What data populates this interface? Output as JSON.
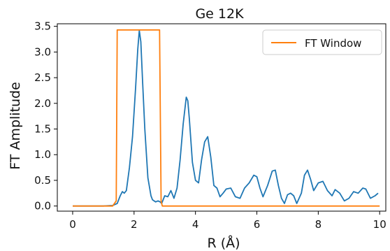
{
  "chart_data": {
    "type": "line",
    "title": "Ge 12K",
    "xlabel": "R (Å)",
    "ylabel": "FT Amplitude",
    "xlim": [
      -0.5,
      10.2
    ],
    "ylim": [
      -0.1,
      3.55
    ],
    "xticks": [
      0,
      2,
      4,
      6,
      8,
      10
    ],
    "yticks": [
      0.0,
      0.5,
      1.0,
      1.5,
      2.0,
      2.5,
      3.0,
      3.5
    ],
    "grid": false,
    "legend_position": "top-right",
    "colors": {
      "amplitude": "#1f77b4",
      "window": "#ff7f0e"
    },
    "series": [
      {
        "legend": false,
        "color": "#1f77b4",
        "x": [
          0.0,
          0.5,
          1.0,
          1.3,
          1.45,
          1.55,
          1.62,
          1.68,
          1.75,
          1.85,
          1.95,
          2.05,
          2.12,
          2.17,
          2.22,
          2.28,
          2.35,
          2.45,
          2.55,
          2.6,
          2.65,
          2.7,
          2.78,
          2.85,
          2.9,
          3.0,
          3.1,
          3.2,
          3.3,
          3.4,
          3.5,
          3.6,
          3.7,
          3.75,
          3.8,
          3.9,
          4.0,
          4.1,
          4.2,
          4.3,
          4.4,
          4.5,
          4.6,
          4.7,
          4.8,
          4.9,
          5.0,
          5.15,
          5.3,
          5.45,
          5.6,
          5.75,
          5.9,
          6.0,
          6.1,
          6.2,
          6.35,
          6.5,
          6.6,
          6.7,
          6.8,
          6.9,
          7.0,
          7.1,
          7.2,
          7.3,
          7.45,
          7.55,
          7.65,
          7.75,
          7.85,
          8.0,
          8.15,
          8.3,
          8.45,
          8.55,
          8.7,
          8.85,
          9.0,
          9.15,
          9.3,
          9.45,
          9.55,
          9.7,
          9.85,
          9.95
        ],
        "y": [
          0.0,
          0.0,
          0.0,
          0.01,
          0.05,
          0.2,
          0.28,
          0.25,
          0.3,
          0.75,
          1.35,
          2.3,
          3.05,
          3.42,
          3.2,
          2.4,
          1.5,
          0.55,
          0.2,
          0.12,
          0.1,
          0.08,
          0.1,
          0.08,
          0.05,
          0.2,
          0.18,
          0.3,
          0.15,
          0.35,
          0.9,
          1.6,
          2.12,
          2.05,
          1.7,
          0.85,
          0.5,
          0.45,
          0.9,
          1.25,
          1.35,
          0.95,
          0.4,
          0.35,
          0.18,
          0.25,
          0.33,
          0.35,
          0.18,
          0.15,
          0.35,
          0.45,
          0.6,
          0.57,
          0.35,
          0.18,
          0.4,
          0.68,
          0.7,
          0.4,
          0.15,
          0.05,
          0.22,
          0.25,
          0.2,
          0.05,
          0.25,
          0.6,
          0.7,
          0.52,
          0.3,
          0.45,
          0.48,
          0.3,
          0.2,
          0.32,
          0.25,
          0.1,
          0.15,
          0.28,
          0.25,
          0.35,
          0.33,
          0.15,
          0.2,
          0.25
        ]
      },
      {
        "name": "FT Window",
        "legend": true,
        "color": "#ff7f0e",
        "x": [
          0.0,
          1.3,
          1.42,
          1.45,
          1.5,
          2.8,
          2.83,
          2.88,
          2.92,
          10.0
        ],
        "y": [
          0.0,
          0.0,
          0.1,
          3.43,
          3.43,
          3.43,
          3.43,
          0.1,
          0.0,
          0.0
        ]
      }
    ]
  }
}
